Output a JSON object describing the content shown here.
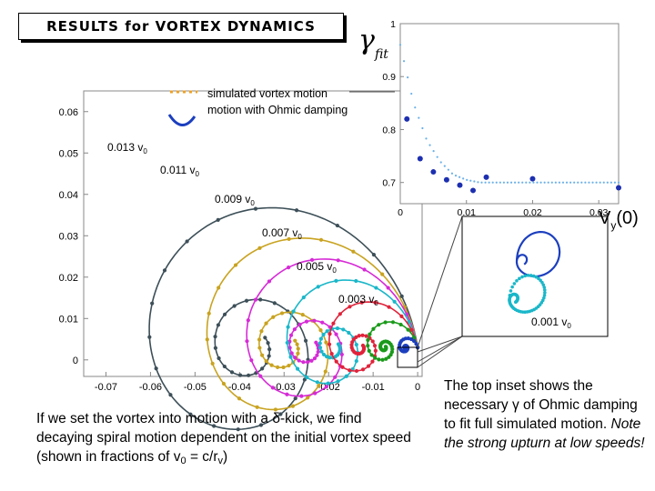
{
  "title": "RESULTS for VORTEX DYNAMICS",
  "legend": {
    "simulated": "simulated vortex motion",
    "ohmic": "motion with Ohmic damping"
  },
  "main_plot": {
    "x_ticks": [
      "-0.07",
      "-0.06",
      "-0.05",
      "-0.04",
      "-0.03",
      "-0.02",
      "-0.01",
      "0"
    ],
    "y_ticks": [
      "0",
      "0.01",
      "0.02",
      "0.03",
      "0.04",
      "0.05",
      "0.06"
    ]
  },
  "inset_plot": {
    "x_ticks": [
      "0",
      "0.01",
      "0.02",
      "0.03"
    ],
    "y_ticks": [
      "0.7",
      "0.8",
      "0.9",
      "1"
    ],
    "ylabel_main": "γ",
    "ylabel_sub": "fit",
    "xlabel_main": "V",
    "xlabel_sub": "y",
    "xlabel_suffix": "(0)"
  },
  "zoom_label": "0.001 v",
  "zoom_label_sub": "0",
  "captions": {
    "left_part1": "If we set the vortex into motion with a ",
    "delta": "δ",
    "left_part2": "-kick, we find decaying spiral motion dependent on the initial vortex speed (shown in fractions of v",
    "left_sub0": "0",
    "left_part3": " = c/r",
    "left_subv": "v",
    "left_part4": ")",
    "right_part1": "The top inset shows the necessary ",
    "gamma": "γ",
    "right_part2": " of Ohmic damping to fit full simulated motion. ",
    "right_italic": "Note the strong upturn at low speeds!"
  },
  "colors": {
    "v0_013": "#3d4f58",
    "v0_011": "#c9a320",
    "v0_009": "#d62ad6",
    "v0_007": "#1ab7c9",
    "v0_005": "#e0233a",
    "v0_003": "#1a9a1a",
    "v0_001": "#1c3fbf",
    "orange": "#f0a020",
    "inset_dots": "#1c2fb0",
    "inset_fit": "#6ab0e8"
  },
  "chart_data": [
    {
      "type": "line",
      "title": "",
      "xlabel": "",
      "ylabel": "",
      "xlim": [
        -0.075,
        0.001
      ],
      "ylim": [
        -0.004,
        0.065
      ],
      "series": [
        {
          "name": "0.013 v0",
          "label": "0.013 v",
          "label_sub": "0",
          "color_key": "v0_013",
          "speed": 0.013,
          "start": [
            0,
            0.003
          ],
          "scale": 0.0378,
          "turns": 2.1,
          "decay": 0.17
        },
        {
          "name": "0.011 v0",
          "label": "0.011 v",
          "label_sub": "0",
          "color_key": "v0_011",
          "speed": 0.011,
          "start": [
            0,
            0.003
          ],
          "scale": 0.03,
          "turns": 2.1,
          "decay": 0.18
        },
        {
          "name": "0.009 v0",
          "label": "0.009 v",
          "label_sub": "0",
          "color_key": "v0_009",
          "speed": 0.009,
          "start": [
            0,
            0.003
          ],
          "scale": 0.0246,
          "turns": 2.1,
          "decay": 0.19
        },
        {
          "name": "0.007 v0",
          "label": "0.007 v",
          "label_sub": "0",
          "color_key": "v0_007",
          "speed": 0.007,
          "start": [
            0,
            0.003
          ],
          "scale": 0.019,
          "turns": 2.1,
          "decay": 0.2
        },
        {
          "name": "0.005 v0",
          "label": "0.005 v",
          "label_sub": "0",
          "color_key": "v0_005",
          "speed": 0.005,
          "start": [
            0,
            0.003
          ],
          "scale": 0.013,
          "turns": 2.1,
          "decay": 0.21
        },
        {
          "name": "0.003 v0",
          "label": "0.003 v",
          "label_sub": "0",
          "color_key": "v0_003",
          "speed": 0.003,
          "start": [
            0,
            0.003
          ],
          "scale": 0.0075,
          "turns": 2.1,
          "decay": 0.23
        },
        {
          "name": "0.001 v0",
          "label": "0.001 v",
          "label_sub": "0",
          "color_key": "v0_001",
          "speed": 0.001,
          "start": [
            0,
            0.003
          ],
          "scale": 0.0028,
          "turns": 2.1,
          "decay": 0.26
        }
      ]
    },
    {
      "type": "scatter",
      "title": "",
      "xlabel": "Vy(0)",
      "ylabel": "γfit",
      "xlim": [
        0,
        0.033
      ],
      "ylim": [
        0.66,
        1.0
      ],
      "series": [
        {
          "name": "gamma_fit",
          "x": [
            0.001,
            0.003,
            0.005,
            0.007,
            0.009,
            0.011,
            0.013,
            0.02,
            0.033
          ],
          "y": [
            0.82,
            0.745,
            0.72,
            0.705,
            0.695,
            0.685,
            0.71,
            0.707,
            0.69
          ]
        },
        {
          "name": "fit_line",
          "x": [
            0.0,
            0.002,
            0.004,
            0.006,
            0.008,
            0.01,
            0.012,
            0.015,
            0.02,
            0.025,
            0.03,
            0.033
          ],
          "y": [
            0.96,
            0.85,
            0.78,
            0.74,
            0.715,
            0.705,
            0.7,
            0.7,
            0.7,
            0.7,
            0.7,
            0.7
          ]
        }
      ]
    }
  ]
}
